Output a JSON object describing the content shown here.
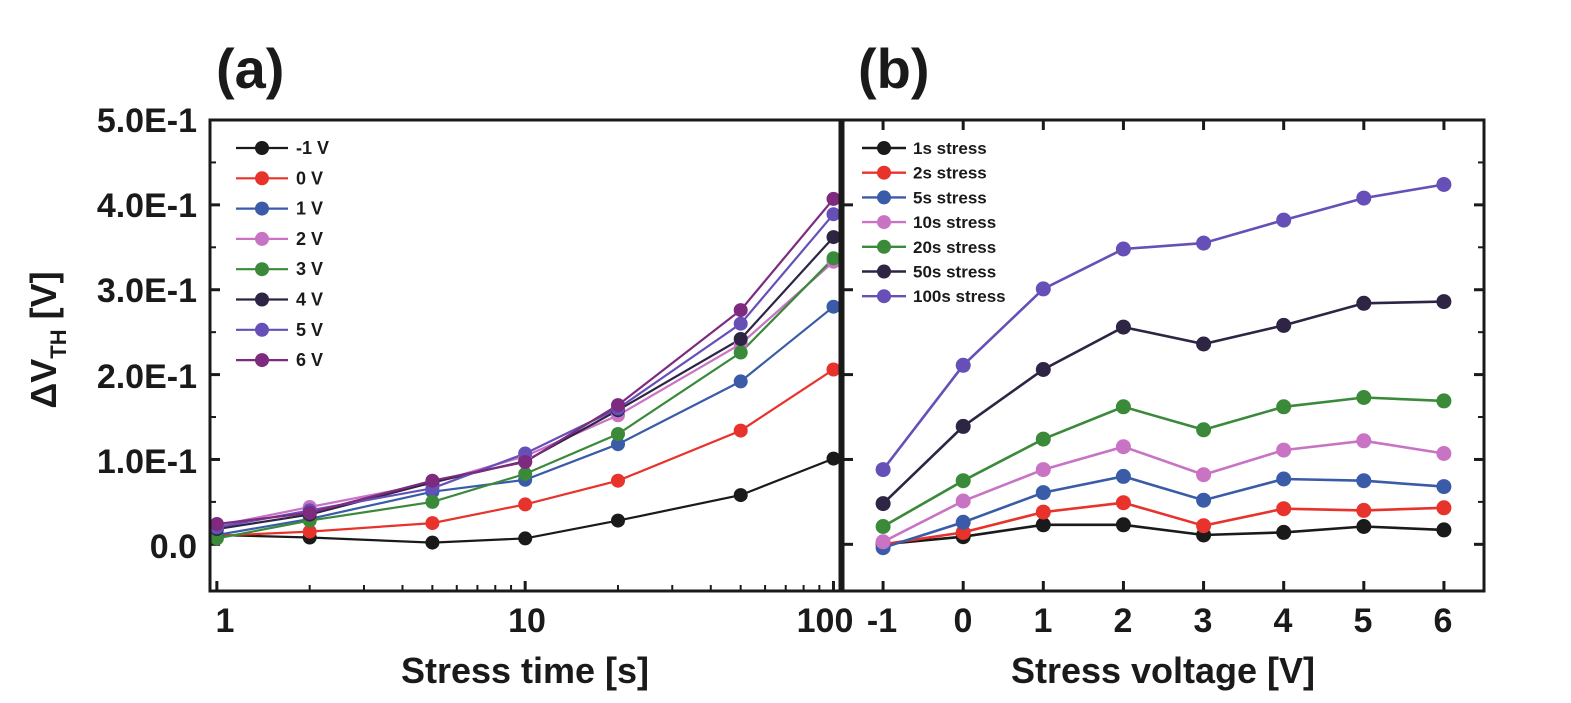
{
  "y_label": {
    "main": "ΔV",
    "sub": "TH",
    "unit": " [V]"
  },
  "y_ticks": [
    "0.0",
    "1.0E-1",
    "2.0E-1",
    "3.0E-1",
    "4.0E-1",
    "5.0E-1"
  ],
  "chart_data": [
    {
      "type": "line",
      "panel_label": "(a)",
      "xlabel": "Stress time [s]",
      "xscale": "log",
      "xlim": [
        0.95,
        105
      ],
      "ylim": [
        -0.055,
        0.5
      ],
      "x_ticks": [
        "1",
        "10",
        "100"
      ],
      "x": [
        1,
        2,
        5,
        10,
        20,
        50,
        100
      ],
      "legend_placement": "top-left",
      "series": [
        {
          "name": "-1 V",
          "color": "#1a1a1a",
          "values": [
            0.011,
            0.008,
            0.002,
            0.007,
            0.028,
            0.058,
            0.101
          ]
        },
        {
          "name": "0 V",
          "color": "#e8322c",
          "values": [
            0.01,
            0.015,
            0.025,
            0.047,
            0.075,
            0.134,
            0.206
          ]
        },
        {
          "name": "1 V",
          "color": "#3a5ca8",
          "values": [
            0.011,
            0.03,
            0.062,
            0.076,
            0.118,
            0.192,
            0.28
          ]
        },
        {
          "name": "2 V",
          "color": "#c873c4",
          "values": [
            0.022,
            0.044,
            0.072,
            0.104,
            0.152,
            0.236,
            0.333
          ]
        },
        {
          "name": "3 V",
          "color": "#3a8a3a",
          "values": [
            0.007,
            0.028,
            0.05,
            0.083,
            0.13,
            0.226,
            0.337
          ]
        },
        {
          "name": "4 V",
          "color": "#2e2444",
          "values": [
            0.018,
            0.035,
            0.073,
            0.098,
            0.158,
            0.242,
            0.362
          ]
        },
        {
          "name": "5 V",
          "color": "#6650b8",
          "values": [
            0.02,
            0.04,
            0.066,
            0.107,
            0.16,
            0.26,
            0.389
          ]
        },
        {
          "name": "6 V",
          "color": "#7e2a7e",
          "values": [
            0.024,
            0.037,
            0.075,
            0.097,
            0.164,
            0.276,
            0.407
          ]
        }
      ]
    },
    {
      "type": "line",
      "panel_label": "(b)",
      "xlabel": "Stress voltage [V]",
      "xlim": [
        -1.5,
        6.5
      ],
      "ylim": [
        -0.055,
        0.5
      ],
      "categories": [
        "-1",
        "0",
        "1",
        "2",
        "3",
        "4",
        "5",
        "6"
      ],
      "legend_placement": "top-left",
      "series": [
        {
          "name": "1s stress",
          "color": "#1a1a1a",
          "values": [
            0.0,
            0.009,
            0.023,
            0.023,
            0.011,
            0.014,
            0.021,
            0.017
          ]
        },
        {
          "name": "2s stress",
          "color": "#e8322c",
          "values": [
            0.0,
            0.014,
            0.038,
            0.049,
            0.022,
            0.042,
            0.04,
            0.043
          ]
        },
        {
          "name": "5s stress",
          "color": "#3a5ca8",
          "values": [
            -0.004,
            0.026,
            0.061,
            0.08,
            0.052,
            0.077,
            0.075,
            0.068
          ]
        },
        {
          "name": "10s stress",
          "color": "#c873c4",
          "values": [
            0.003,
            0.051,
            0.088,
            0.115,
            0.082,
            0.111,
            0.122,
            0.107
          ]
        },
        {
          "name": "20s stress",
          "color": "#3a8a3a",
          "values": [
            0.021,
            0.075,
            0.124,
            0.162,
            0.135,
            0.162,
            0.173,
            0.169
          ]
        },
        {
          "name": "50s stress",
          "color": "#2e2444",
          "values": [
            0.048,
            0.139,
            0.206,
            0.256,
            0.236,
            0.258,
            0.284,
            0.286
          ]
        },
        {
          "name": "100s stress",
          "color": "#6650b8",
          "values": [
            0.088,
            0.211,
            0.301,
            0.348,
            0.355,
            0.382,
            0.408,
            0.424
          ]
        }
      ]
    }
  ]
}
